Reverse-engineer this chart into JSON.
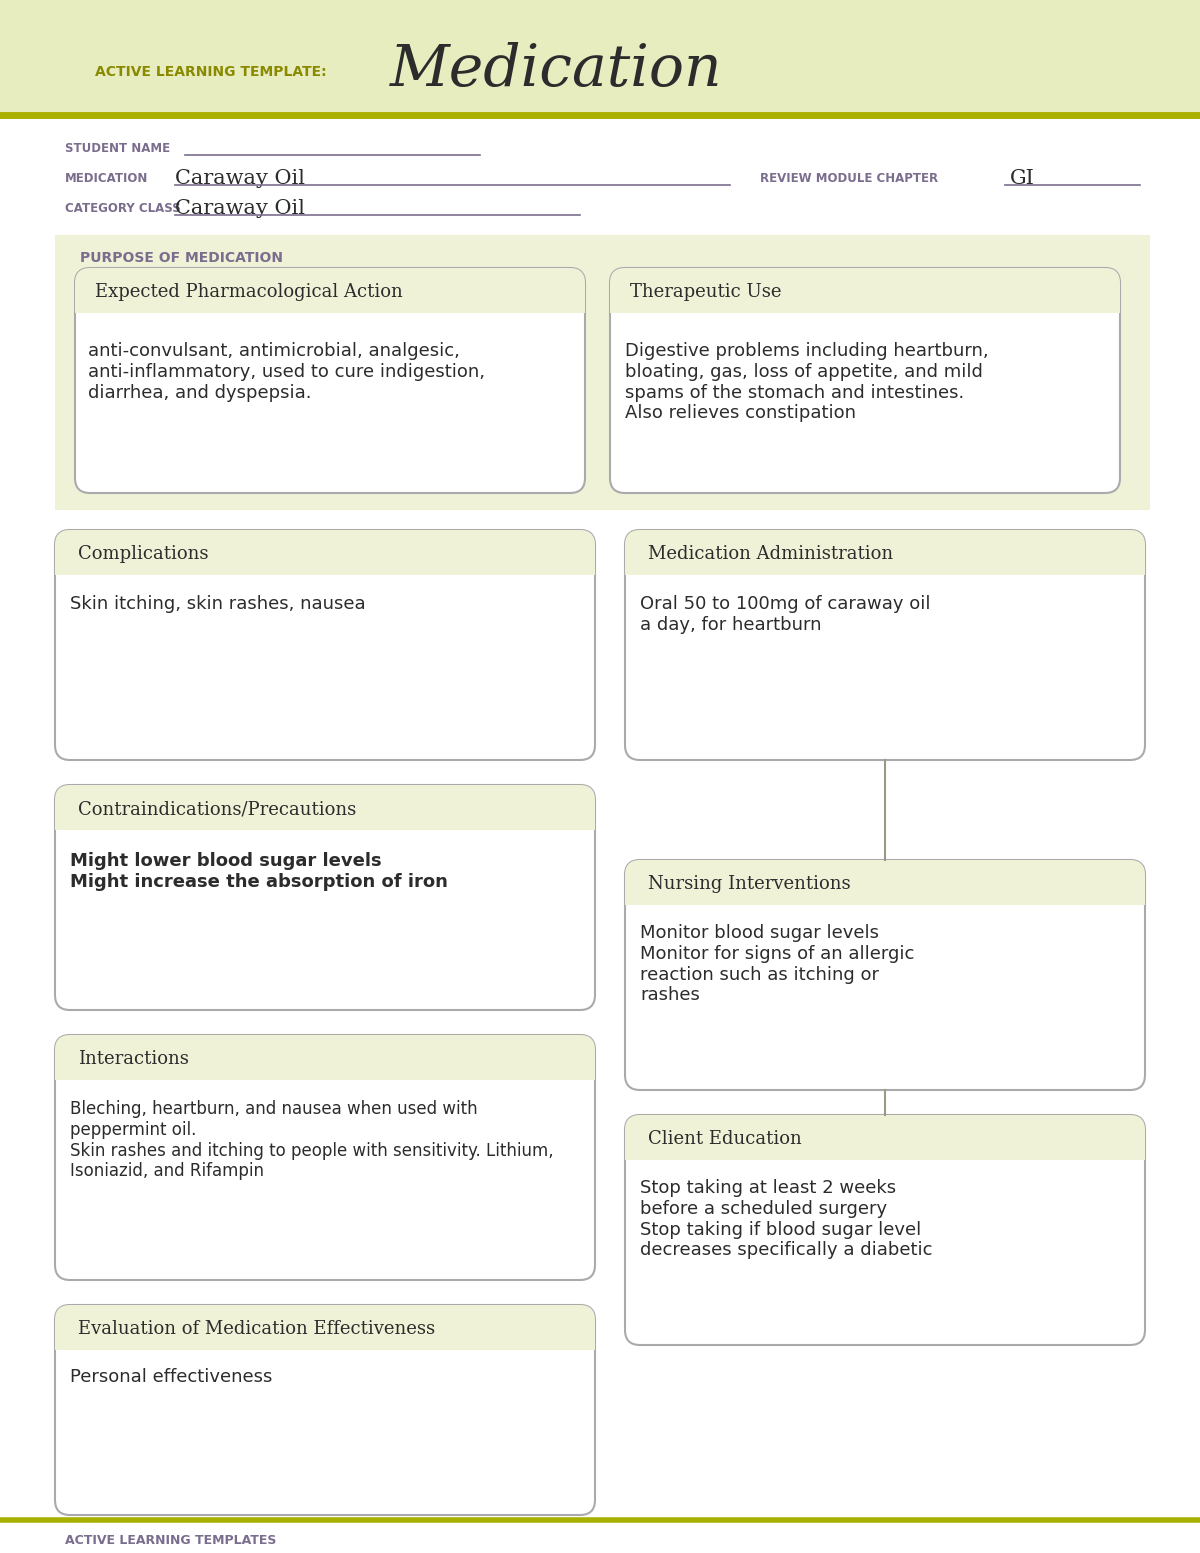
{
  "bg_header": "#e8edc0",
  "bg_white": "#ffffff",
  "bg_section": "#f0f2d8",
  "color_purple": "#7b6d8d",
  "color_dark": "#2c2c2c",
  "color_olive": "#8a8a00",
  "color_line": "#b0b090",
  "title_small": "ACTIVE LEARNING TEMPLATE:",
  "title_large": "Medication",
  "student_name_label": "STUDENT NAME",
  "medication_label": "MEDICATION",
  "medication_value": "Caraway Oil",
  "review_label": "REVIEW MODULE CHAPTER",
  "review_value": "GI",
  "category_label": "CATEGORY CLASS",
  "category_value": "Caraway Oil",
  "purpose_label": "PURPOSE OF MEDICATION",
  "box1_title": "Expected Pharmacological Action",
  "box1_text": "anti-convulsant, antimicrobial, analgesic,\nanti-inflammatory, used to cure indigestion,\ndiarrhea, and dyspepsia.",
  "box2_title": "Therapeutic Use",
  "box2_text": "Digestive problems including heartburn,\nbloating, gas, loss of appetite, and mild\nspams of the stomach and intestines.\nAlso relieves constipation",
  "box3_title": "Complications",
  "box3_text": "Skin itching, skin rashes, nausea",
  "box4_title": "Medication Administration",
  "box4_text": "Oral 50 to 100mg of caraway oil\na day, for heartburn",
  "box5_title": "Contraindications/Precautions",
  "box5_text": "Might lower blood sugar levels\nMight increase the absorption of iron",
  "box6_title": "Nursing Interventions",
  "box6_text": "Monitor blood sugar levels\nMonitor for signs of an allergic\nreaction such as itching or\nrashes",
  "box7_title": "Interactions",
  "box7_text": "Bleching, heartburn, and nausea when used with\npeppermint oil.\nSkin rashes and itching to people with sensitivity. Lithium,\nIsoniazid, and Rifampin",
  "box8_title": "Client Education",
  "box8_text": "Stop taking at least 2 weeks\nbefore a scheduled surgery\nStop taking if blood sugar level\ndecreases specifically a diabetic",
  "box9_title": "Evaluation of Medication Effectiveness",
  "box9_text": "Personal effectiveness",
  "footer_text": "ACTIVE LEARNING TEMPLATES"
}
